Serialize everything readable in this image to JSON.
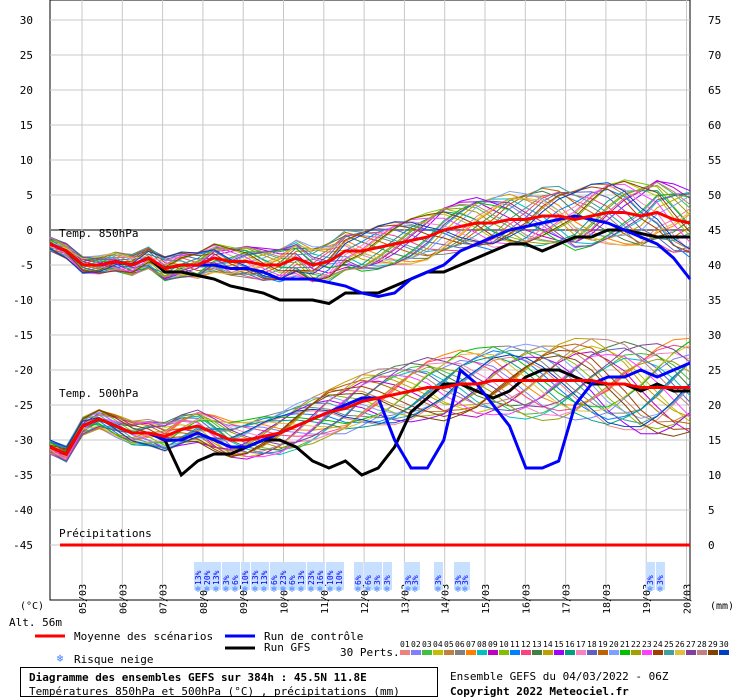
{
  "chart_data": {
    "type": "line",
    "title": "Diagramme des ensembles GEFS sur 384h : 45.5N 11.8E",
    "subtitle": "Températures 850hPa et 500hPa (°C) , précipitations (mm)",
    "x_labels": [
      "05/03",
      "06/03",
      "07/03",
      "08/03",
      "09/03",
      "10/03",
      "11/03",
      "12/03",
      "13/03",
      "14/03",
      "15/03",
      "16/03",
      "17/03",
      "18/03",
      "19/03",
      "20/03"
    ],
    "y_left_ticks": [
      30,
      25,
      20,
      15,
      10,
      5,
      0,
      -5,
      -10,
      -15,
      -20,
      -25,
      -30,
      -35,
      -40,
      -45
    ],
    "y_right_ticks": [
      75,
      70,
      65,
      60,
      55,
      50,
      45,
      40,
      35,
      30,
      25,
      20,
      15,
      10,
      5,
      0
    ],
    "y_left_label": "(°C)",
    "y_right_label": "(mm)",
    "altitude": "Alt. 56m",
    "panel_labels": {
      "t850": "Temp. 850hPa",
      "t500": "Temp. 500hPa",
      "precip": "Précipitations"
    },
    "series": [
      {
        "name": "Moyenne des scénarios",
        "color": "#ff0000",
        "t850": [
          -2,
          -3,
          -5,
          -5,
          -4.5,
          -5,
          -4,
          -5.5,
          -5,
          -5,
          -4,
          -4.5,
          -4.5,
          -5,
          -5,
          -4,
          -5,
          -4.5,
          -3,
          -3,
          -2.5,
          -2,
          -1.5,
          -1,
          0,
          0.5,
          1,
          1,
          1.5,
          1.5,
          2,
          2,
          1.5,
          2,
          2.5,
          2.5,
          2,
          2.5,
          1.5,
          1
        ],
        "t500": [
          -31,
          -32,
          -28,
          -27,
          -28,
          -29,
          -29,
          -29.5,
          -28.5,
          -28,
          -29,
          -30,
          -30,
          -29.5,
          -29,
          -28,
          -27,
          -26,
          -25.5,
          -24.5,
          -24,
          -23.5,
          -23,
          -22.5,
          -22.5,
          -22,
          -22,
          -21.5,
          -21.5,
          -21.5,
          -21.5,
          -21.5,
          -21.5,
          -21.5,
          -22,
          -22,
          -22.5,
          -22.5,
          -22.5,
          -22.5
        ]
      },
      {
        "name": "Run de contrôle",
        "color": "#0000ff",
        "t850": [
          -2,
          -3,
          -5,
          -5,
          -4.5,
          -5,
          -4,
          -5.5,
          -5,
          -5,
          -5,
          -5.5,
          -5.5,
          -6,
          -7,
          -7,
          -7,
          -7.5,
          -8,
          -9,
          -9.5,
          -9,
          -7,
          -6,
          -5,
          -3,
          -2,
          -1,
          0,
          0.5,
          1,
          1.5,
          2,
          1.5,
          1,
          0,
          -1,
          -2,
          -4,
          -7
        ],
        "t500": [
          -31,
          -32,
          -28,
          -27,
          -28,
          -29,
          -29,
          -30,
          -30,
          -29,
          -30,
          -31,
          -31,
          -30,
          -29,
          -28,
          -27,
          -26,
          -25,
          -24,
          -24,
          -30,
          -34,
          -34,
          -30,
          -20,
          -22,
          -25,
          -28,
          -34,
          -34,
          -33,
          -25,
          -22,
          -21,
          -21,
          -20,
          -21,
          -20,
          -19
        ]
      },
      {
        "name": "Run GFS",
        "color": "#000000",
        "t850": [
          -2,
          -3,
          -5,
          -5,
          -4.5,
          -5,
          -4,
          -6,
          -6,
          -6.5,
          -7,
          -8,
          -8.5,
          -9,
          -10,
          -10,
          -10,
          -10.5,
          -9,
          -9,
          -9,
          -8,
          -7,
          -6,
          -6,
          -5,
          -4,
          -3,
          -2,
          -2,
          -3,
          -2,
          -1,
          -1,
          0,
          0,
          -0.5,
          -1,
          -1,
          -1
        ],
        "t500": [
          -31,
          -32,
          -28,
          -27,
          -28,
          -29,
          -29,
          -30,
          -35,
          -33,
          -32,
          -32,
          -31,
          -30,
          -30,
          -31,
          -33,
          -34,
          -33,
          -35,
          -34,
          -31,
          -26,
          -24,
          -22,
          -22,
          -23,
          -24,
          -23,
          -21,
          -20,
          -20,
          -21,
          -22,
          -22,
          -22,
          -23,
          -22,
          -23,
          -23
        ]
      }
    ],
    "snow_risk": {
      "label": "Risque neige",
      "values": [
        "13%",
        "20%",
        "13%",
        "3%",
        "6%",
        "10%",
        "13%",
        "13%",
        "6%",
        "23%",
        "6%",
        "13%",
        "23%",
        "16%",
        "10%",
        "10%",
        "6%",
        "6%",
        "3%",
        "3%",
        "3%",
        "3%",
        "3%",
        "3%",
        "3%",
        "3%",
        "3%"
      ]
    },
    "legend": {
      "mean": "Moyenne des scénarios",
      "control": "Run de contrôle",
      "gfs": "Run GFS",
      "snow": "Risque neige",
      "perts": "30 Perts.",
      "pert_numbers": [
        "01",
        "02",
        "03",
        "04",
        "05",
        "06",
        "07",
        "08",
        "09",
        "10",
        "11",
        "12",
        "13",
        "14",
        "15",
        "16",
        "17",
        "18",
        "19",
        "20",
        "21",
        "22",
        "23",
        "24",
        "25",
        "26",
        "27",
        "28",
        "29",
        "30"
      ],
      "pert_colors": [
        "#f08080",
        "#8080ff",
        "#40c040",
        "#c0c000",
        "#c08040",
        "#808080",
        "#ff8000",
        "#00c0c0",
        "#c000c0",
        "#80c000",
        "#0080ff",
        "#ff4080",
        "#408040",
        "#c0a000",
        "#a000ff",
        "#00a080",
        "#ff80c0",
        "#6060c0",
        "#c06000",
        "#80a0ff",
        "#00c000",
        "#a0a000",
        "#ff40ff",
        "#a04000",
        "#40a0a0",
        "#e0c040",
        "#8040a0",
        "#c08080",
        "#804000",
        "#0040c0"
      ]
    },
    "footer": {
      "title": "Diagramme des ensembles GEFS sur 384h : 45.5N 11.8E",
      "subtitle": "Températures 850hPa et 500hPa (°C) , précipitations (mm)",
      "run": "Ensemble GEFS du 04/03/2022 - 06Z",
      "copyright": "Copyright 2022 Meteociel.fr"
    }
  }
}
